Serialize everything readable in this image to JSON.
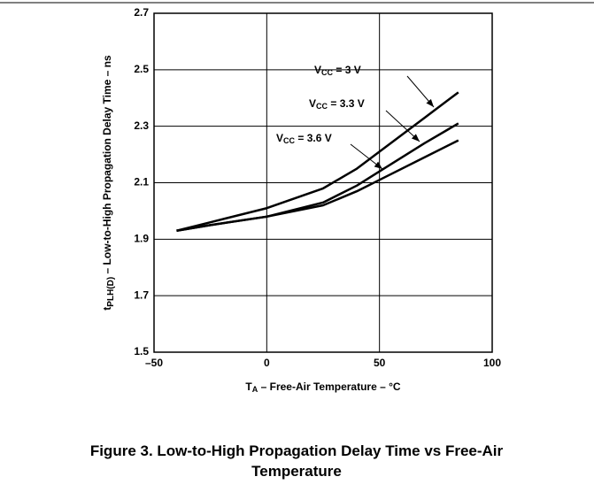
{
  "chart_data": {
    "type": "line",
    "xlabel": "TA – Free-Air Temperature – °C",
    "ylabel": "tPLH(D) – Low-to-High Propagation Delay Time – ns",
    "caption": "Figure 3. Low-to-High Propagation Delay Time vs Free-Air Temperature",
    "x": [
      -40,
      -25,
      0,
      25,
      40,
      50,
      70,
      85
    ],
    "series": [
      {
        "name": "VCC = 3 V",
        "color": "#000000",
        "values": [
          1.93,
          1.96,
          2.01,
          2.08,
          2.15,
          2.21,
          2.33,
          2.42
        ]
      },
      {
        "name": "VCC = 3.3 V",
        "color": "#000000",
        "values": [
          1.93,
          1.95,
          1.98,
          2.03,
          2.09,
          2.14,
          2.24,
          2.31
        ]
      },
      {
        "name": "VCC = 3.6 V",
        "color": "#000000",
        "values": [
          1.93,
          1.95,
          1.98,
          2.02,
          2.07,
          2.11,
          2.19,
          2.25
        ]
      }
    ],
    "xlim": [
      -50,
      100
    ],
    "xticks": [
      {
        "value": -50,
        "label": "–50"
      },
      0,
      50,
      100
    ],
    "ylim": [
      1.5,
      2.7
    ],
    "yticks": [
      1.5,
      1.7,
      1.9,
      2.1,
      2.3,
      2.5,
      2.7
    ],
    "grid": true
  }
}
